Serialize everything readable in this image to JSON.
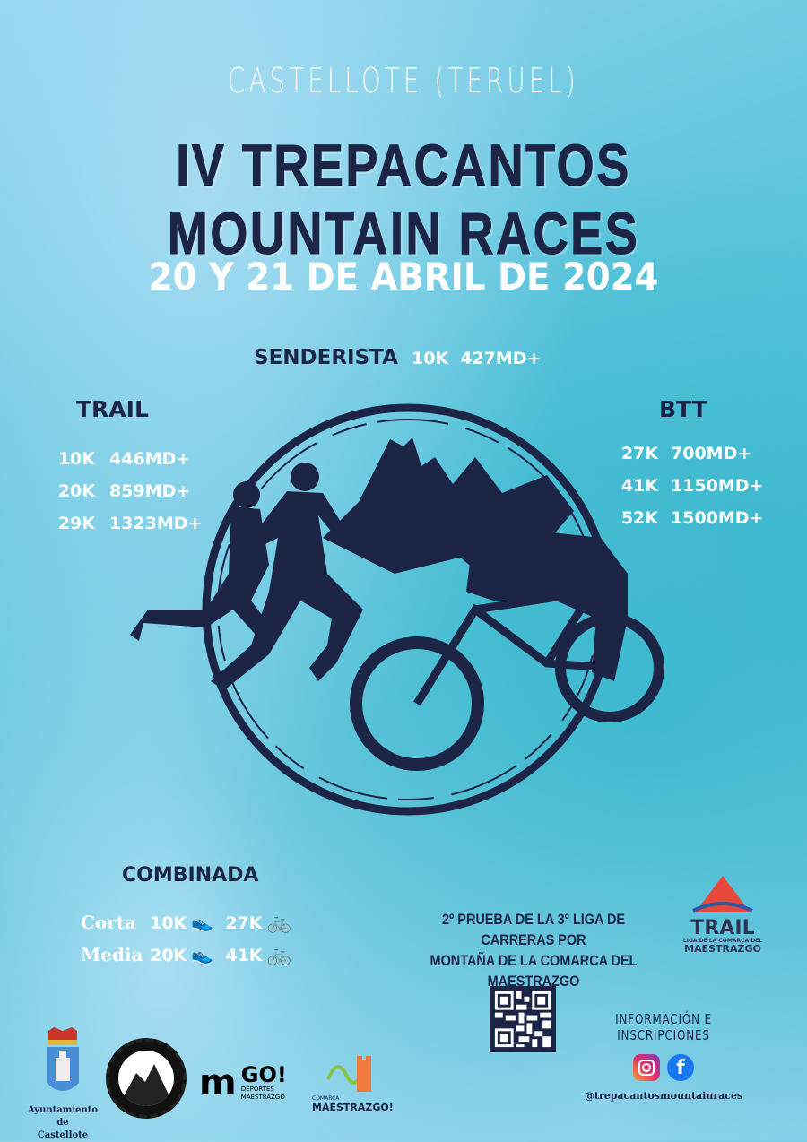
{
  "header": {
    "location": "CASTELLOTE (TERUEL)",
    "title": "IV TREPACANTOS MOUNTAIN RACES",
    "date": "20 Y 21 DE ABRIL DE 2024"
  },
  "senderista": {
    "label": "SENDERISTA",
    "distance": "10K",
    "elevation": "427MD+"
  },
  "trail": {
    "label": "TRAIL",
    "races": [
      {
        "distance": "10K",
        "elevation": "446MD+"
      },
      {
        "distance": "20K",
        "elevation": "859MD+"
      },
      {
        "distance": "29K",
        "elevation": "1323MD+"
      }
    ]
  },
  "btt": {
    "label": "BTT",
    "races": [
      {
        "distance": "27K",
        "elevation": "700MD+"
      },
      {
        "distance": "41K",
        "elevation": "1150MD+"
      },
      {
        "distance": "52K",
        "elevation": "1500MD+"
      }
    ]
  },
  "combinada": {
    "label": "COMBINADA",
    "rows": [
      {
        "name": "Corta",
        "run": "10K",
        "bike": "27K"
      },
      {
        "name": "Media",
        "run": "20K",
        "bike": "41K"
      }
    ]
  },
  "league": {
    "text_line1": "2º PRUEBA DE LA 3º LIGA DE CARRERAS POR",
    "text_line2": "MONTAÑA DE LA COMARCA DEL MAESTRAZGO",
    "logo_title": "TRAIL",
    "logo_sub1": "LIGA DE LA COMARCA DEL",
    "logo_sub2": "MAESTRAZGO"
  },
  "info": {
    "label": "INFORMACIÓN E INSCRIPCIONES",
    "handle": "@trepacantosmountainraces",
    "icons": [
      "instagram-icon",
      "facebook-icon"
    ]
  },
  "sponsors": {
    "ayuntamiento_line1": "Ayuntamiento de",
    "ayuntamiento_line2": "Castellote",
    "trepacantos_logo": "TREPACANTOS CASTELLOTE",
    "go_logo": "GO!",
    "go_sub1": "DEPORTES",
    "go_sub2": "MAESTRAZGO",
    "comarca_sub": "COMARCA",
    "comarca_name": "MAESTRAZGO!"
  },
  "colors": {
    "navy": "#1c2546",
    "white": "#ffffff",
    "accent_red": "#e8483a",
    "bg_light": "#9fd7ef",
    "bg_teal": "#3cb7cd"
  }
}
